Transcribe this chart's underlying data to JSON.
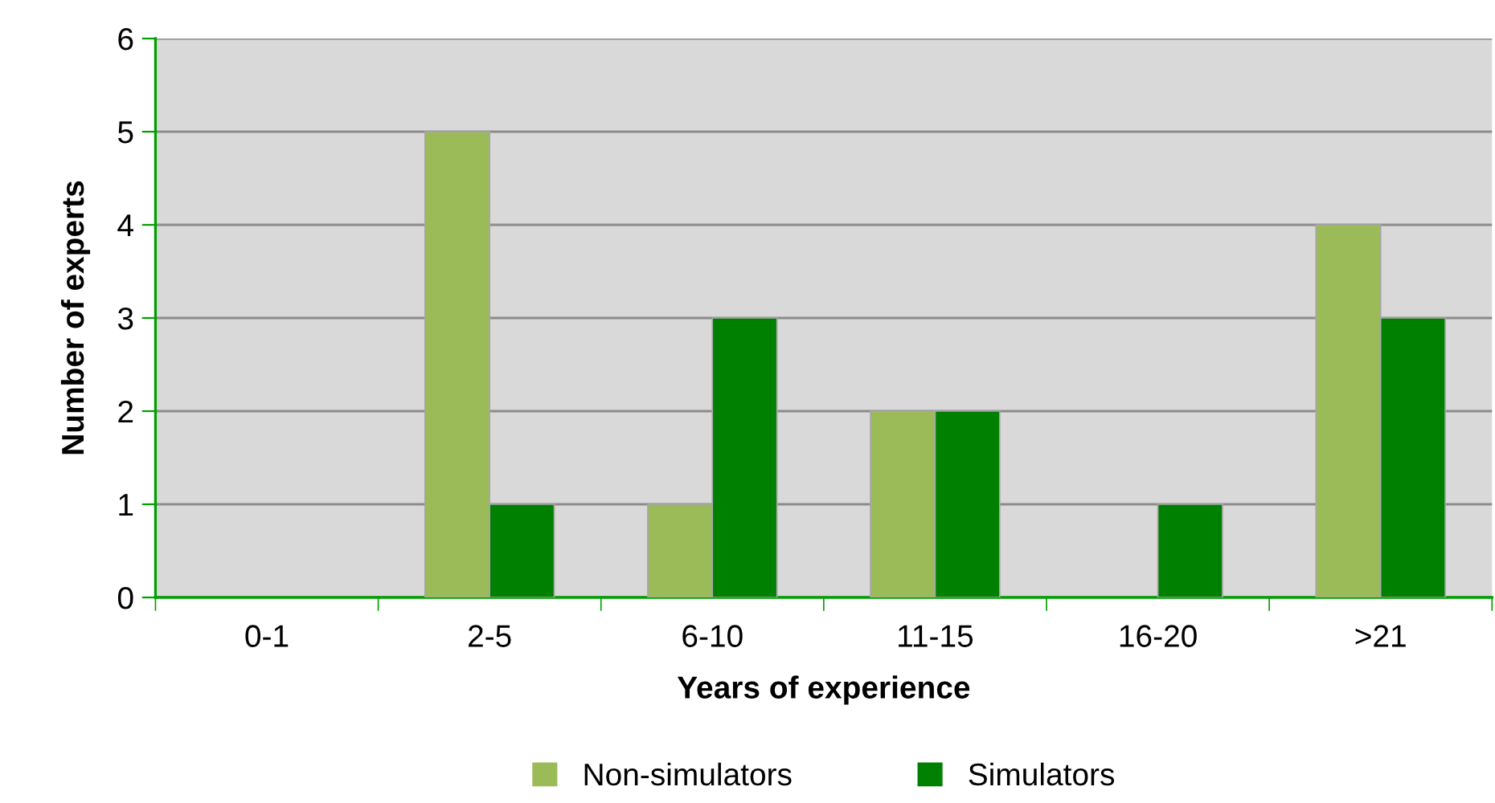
{
  "chart_data": {
    "type": "bar",
    "xlabel": "Years of experience",
    "ylabel": "Number of experts",
    "categories": [
      "0-1",
      "2-5",
      "6-10",
      "11-15",
      "16-20",
      ">21"
    ],
    "series": [
      {
        "name": "Non-simulators",
        "color": "#9bbb59",
        "values": [
          0,
          5,
          1,
          2,
          0,
          4
        ]
      },
      {
        "name": "Simulators",
        "color": "#008000",
        "values": [
          0,
          1,
          3,
          2,
          1,
          3
        ]
      }
    ],
    "ylim": [
      0,
      6
    ],
    "yticks": [
      0,
      1,
      2,
      3,
      4,
      5,
      6
    ],
    "grid": "y",
    "legend": "bottom"
  }
}
